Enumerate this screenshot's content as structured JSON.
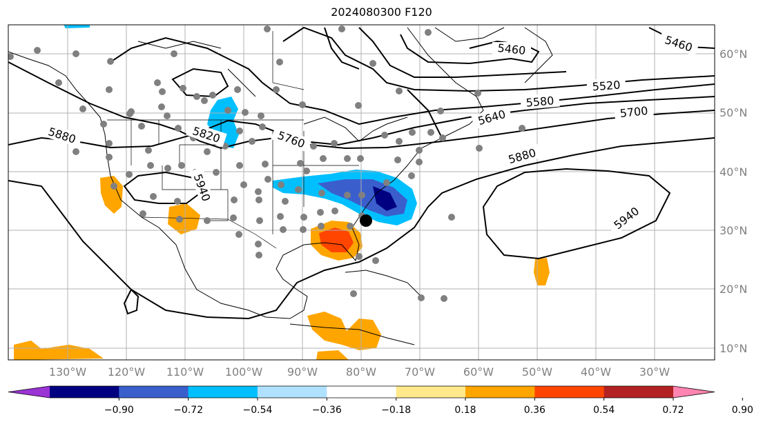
{
  "map": {
    "title": "2024080300 F120",
    "lat_labels": [
      "60°N",
      "50°N",
      "40°N",
      "30°N",
      "20°N",
      "10°N"
    ],
    "lon_labels": [
      "130°W",
      "120°W",
      "110°W",
      "100°W",
      "90°W",
      "80°W",
      "70°W",
      "60°W",
      "50°W",
      "40°W",
      "30°W"
    ],
    "contour_labels": [
      "5460",
      "5460",
      "5520",
      "5580",
      "5640",
      "5700",
      "5760",
      "5820",
      "5880",
      "5880",
      "5940",
      "5940"
    ]
  },
  "colorbar": {
    "ticks": [
      "−0.90",
      "−0.72",
      "−0.54",
      "−0.36",
      "−0.18",
      "0.18",
      "0.36",
      "0.54",
      "0.72",
      "0.90"
    ],
    "colors": [
      "#9a34d4",
      "#000080",
      "#3a5fcd",
      "#00bfff",
      "#b0e2ff",
      "#ffffff",
      "#ffe98a",
      "#ffa500",
      "#ff4500",
      "#b22222",
      "#ff85b0"
    ]
  }
}
